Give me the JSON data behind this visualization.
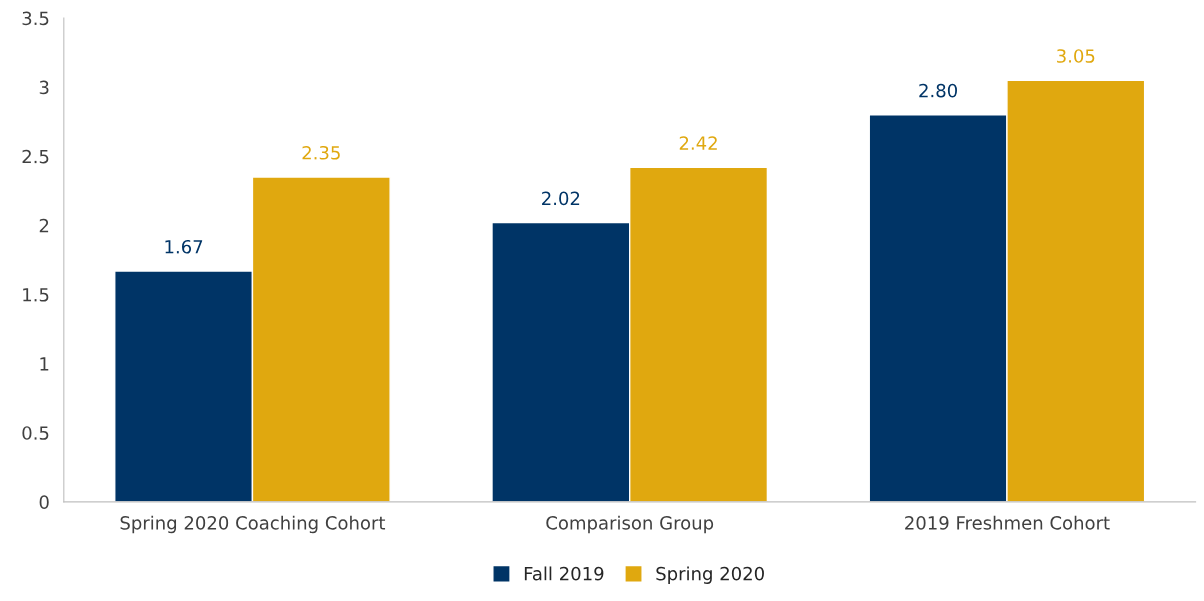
{
  "chart_data": {
    "type": "bar",
    "categories": [
      "Spring 2020 Coaching Cohort",
      "Comparison Group",
      "2019 Freshmen Cohort"
    ],
    "series": [
      {
        "name": "Fall 2019",
        "color": "#003466",
        "values": [
          1.67,
          2.02,
          2.8
        ],
        "value_labels": [
          "1.67",
          "2.02",
          "2.80"
        ]
      },
      {
        "name": "Spring 2020",
        "color": "#e0a80f",
        "values": [
          2.35,
          2.42,
          3.05
        ],
        "value_labels": [
          "2.35",
          "2.42",
          "3.05"
        ]
      }
    ],
    "ylim": [
      0,
      3.5
    ],
    "yticks": [
      0,
      0.5,
      1,
      1.5,
      2,
      2.5,
      3,
      3.5
    ],
    "grid": false,
    "legend": "bottom"
  }
}
